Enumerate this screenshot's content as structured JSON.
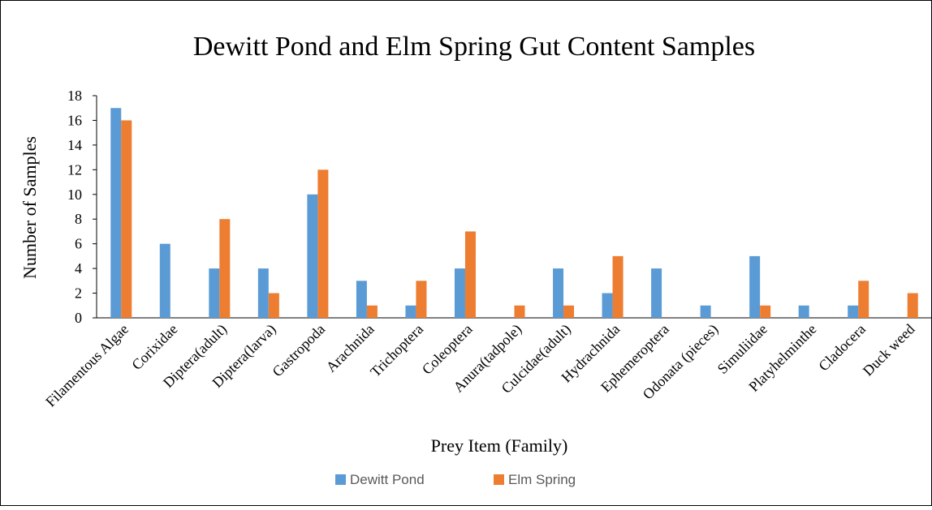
{
  "chart_data": {
    "type": "bar",
    "title": "Dewitt Pond and Elm Spring Gut Content Samples",
    "xlabel": "Prey Item (Family)",
    "ylabel": "Number of Samples",
    "ylim": [
      0,
      18
    ],
    "yticks": [
      0,
      2,
      4,
      6,
      8,
      10,
      12,
      14,
      16,
      18
    ],
    "grid": false,
    "legend_position": "bottom",
    "categories": [
      "Filamentous Algae",
      "Corixidae",
      "Diptera(adult)",
      "Diptera(larva)",
      "Gastropoda",
      "Arachnida",
      "Trichoptera",
      "Coleoptera",
      "Anura(tadpole)",
      "Culcidae(adult)",
      "Hydrachnida",
      "Ephemeroptera",
      "Odonata (pieces)",
      "Simuliidae",
      "Platyhelminthe",
      "Cladocera",
      "Duck weed"
    ],
    "series": [
      {
        "name": "Dewitt Pond",
        "color": "#5B9BD5",
        "values": [
          17,
          6,
          4,
          4,
          10,
          3,
          1,
          4,
          0,
          4,
          2,
          4,
          1,
          5,
          1,
          1,
          0
        ]
      },
      {
        "name": "Elm Spring",
        "color": "#ED7D31",
        "values": [
          16,
          0,
          8,
          2,
          12,
          1,
          3,
          7,
          1,
          1,
          5,
          0,
          0,
          1,
          0,
          3,
          2
        ]
      }
    ]
  }
}
